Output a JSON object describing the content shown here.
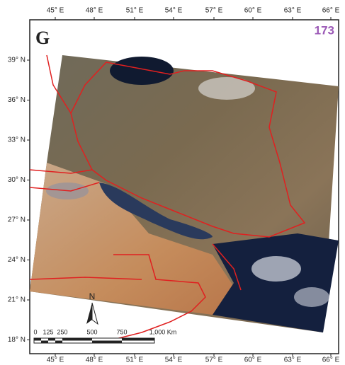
{
  "panel_label": "G",
  "page_number": "173",
  "longitude_labels_top": [
    "45° E",
    "48° E",
    "51° E",
    "54° E",
    "57° E",
    "60° E",
    "63° E",
    "66° E"
  ],
  "longitude_labels_bottom": [
    "45° E",
    "48° E",
    "51° E",
    "54° E",
    "57° E",
    "60° E",
    "63° E",
    "66° E"
  ],
  "latitude_labels": [
    "39° N",
    "36° N",
    "33° N",
    "30° N",
    "27° N",
    "24° N",
    "21° N",
    "18° N"
  ],
  "north_label": "N",
  "scale_labels": [
    "0",
    "125",
    "250",
    "500",
    "750",
    "1,000 Km"
  ]
}
